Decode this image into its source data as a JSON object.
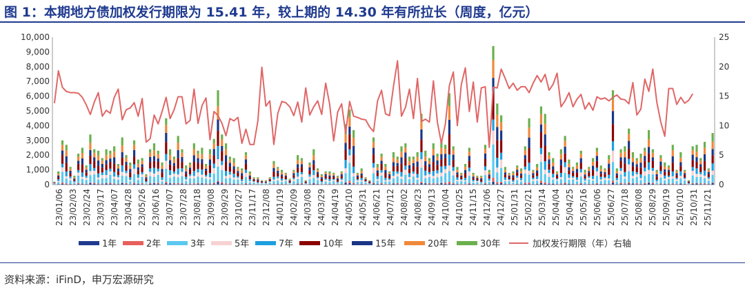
{
  "title": "图 1：本期地方债加权发行期限为 15.41 年，较上期的 14.30 年有所拉长（周度，亿元）",
  "source": "资料来源：iFinD，申万宏源研究",
  "colors": {
    "y1": "#1f3a8f",
    "y2": "#e8605c",
    "y3": "#5bc8ef",
    "y5": "#f7d2d2",
    "y7": "#1e9fe0",
    "y10": "#8b0000",
    "y15": "#1a3585",
    "y20": "#f0883a",
    "y30": "#6ab04c",
    "line": "#e06666",
    "title": "#1f3a8f"
  },
  "chart_data": {
    "type": "bar",
    "stacked": true,
    "title": "",
    "xlabel": "",
    "ylabel": "",
    "y_left": {
      "min": 0,
      "max": 10000,
      "step": 1000
    },
    "y_right": {
      "min": 0,
      "max": 25,
      "step": 5
    },
    "legend_position": "bottom",
    "grid": false,
    "x_labels": [
      "23/01/06",
      "23/02/03",
      "23/02/24",
      "23/03/17",
      "23/04/07",
      "23/04/28",
      "23/05/26",
      "23/06/16",
      "23/07/07",
      "23/07/28",
      "23/08/18",
      "23/09/08",
      "23/09/29",
      "23/10/27",
      "23/11/17",
      "23/12/08",
      "24/01/19",
      "24/02/09",
      "24/03/08",
      "24/03/29",
      "24/04/19",
      "24/05/10",
      "24/05/31",
      "24/06/21",
      "24/07/12",
      "24/08/02",
      "24/08/23",
      "24/09/13",
      "24/10/04",
      "24/10/25",
      "24/11/15",
      "24/12/06",
      "24/12/27",
      "25/01/31",
      "25/02/21",
      "25/03/14",
      "25/04/04",
      "25/04/25",
      "25/05/16",
      "25/06/06",
      "25/06/27",
      "25/07/18",
      "25/08/08",
      "25/08/29",
      "25/09/19",
      "25/10/10",
      "25/10/31",
      "25/11/21"
    ],
    "series": [
      {
        "name": "1年",
        "key": "y1",
        "axis": "left"
      },
      {
        "name": "2年",
        "key": "y2",
        "axis": "left"
      },
      {
        "name": "3年",
        "key": "y3",
        "axis": "left"
      },
      {
        "name": "5年",
        "key": "y5",
        "axis": "left"
      },
      {
        "name": "7年",
        "key": "y7",
        "axis": "left"
      },
      {
        "name": "10年",
        "key": "y10",
        "axis": "left"
      },
      {
        "name": "15年",
        "key": "y15",
        "axis": "left"
      },
      {
        "name": "20年",
        "key": "y20",
        "axis": "left"
      },
      {
        "name": "30年",
        "key": "y30",
        "axis": "left"
      },
      {
        "name": "加权发行期限（年）右轴",
        "key": "line",
        "axis": "right",
        "type": "line"
      }
    ],
    "totals": [
      200,
      900,
      3000,
      2700,
      1200,
      600,
      2100,
      2500,
      1300,
      3400,
      2400,
      2300,
      1800,
      2400,
      2300,
      2600,
      1400,
      3200,
      2000,
      1500,
      3000,
      1700,
      1800,
      700,
      2400,
      2800,
      2300,
      1500,
      4500,
      2400,
      1900,
      3300,
      2400,
      1300,
      1500,
      2800,
      2300,
      2500,
      1400,
      2400,
      3100,
      6400,
      3400,
      2800,
      1900,
      1800,
      1200,
      1100,
      2200,
      900,
      500,
      500,
      300,
      300,
      500,
      1600,
      1200,
      1000,
      800,
      400,
      1000,
      2000,
      1800,
      300,
      1500,
      2400,
      1100,
      700,
      900,
      900,
      800,
      600,
      900,
      4100,
      5100,
      3700,
      800,
      1100,
      500,
      300,
      3200,
      1400,
      2100,
      1400,
      900,
      2200,
      1900,
      2600,
      2800,
      1900,
      1900,
      2200,
      4800,
      2300,
      1800,
      2800,
      2100,
      3000,
      2700,
      6200,
      2600,
      1200,
      800,
      1400,
      2500,
      800,
      600,
      600,
      2700,
      1000,
      9400,
      5500,
      4700,
      1200,
      800,
      900,
      1300,
      1100,
      2600,
      4500,
      1000,
      1400,
      5300,
      4800,
      2200,
      1800,
      900,
      2400,
      3300,
      1700,
      1200,
      1500,
      2300,
      1000,
      1200,
      1800,
      2500,
      1300,
      1100,
      2000,
      6400,
      1100,
      2400,
      2600,
      3800,
      2200,
      1800,
      2100,
      2500,
      3700,
      2400,
      1000,
      2000,
      1500,
      1300,
      2700,
      1000,
      2200,
      1000,
      300,
      2600,
      2700,
      1800,
      2900,
      1100,
      3500
    ],
    "weighted_maturity": [
      13.8,
      19.3,
      16.5,
      15.8,
      15.6,
      15.6,
      15.5,
      14.8,
      13.5,
      11.9,
      14.0,
      15.6,
      11.6,
      12.6,
      12.1,
      14.8,
      16.2,
      11.0,
      12.7,
      13.0,
      13.9,
      11.6,
      14.6,
      7.2,
      7.8,
      11.8,
      10.3,
      12.4,
      14.8,
      11.2,
      12.7,
      14.9,
      14.9,
      10.3,
      10.9,
      16.2,
      10.4,
      13.4,
      14.7,
      7.6,
      12.4,
      11.7,
      10.4,
      8.3,
      11.2,
      10.8,
      11.4,
      7.0,
      9.4,
      6.8,
      6.8,
      10.8,
      19.9,
      13.3,
      14.2,
      6.8,
      12.1,
      14.1,
      13.9,
      13.2,
      11.7,
      14.0,
      10.6,
      16.4,
      11.8,
      13.2,
      14.2,
      11.9,
      17.2,
      13.6,
      7.4,
      12.3,
      13.7,
      8.7,
      14.1,
      11.6,
      11.4,
      11.1,
      11.0,
      9.8,
      9.0,
      14.2,
      16.0,
      12.0,
      11.7,
      16.7,
      21.0,
      11.6,
      13.1,
      16.2,
      11.2,
      18.0,
      10.7,
      11.1,
      10.6,
      17.6,
      10.6,
      7.0,
      10.3,
      16.8,
      19.1,
      10.0,
      17.0,
      19.8,
      12.4,
      17.4,
      10.6,
      16.4,
      16.6,
      6.3,
      16.5,
      16.4,
      19.6,
      18.0,
      16.3,
      17.2,
      16.0,
      16.6,
      16.6,
      15.6,
      17.2,
      18.5,
      17.4,
      18.7,
      16.0,
      17.0,
      18.9,
      13.2,
      14.2,
      15.6,
      13.2,
      14.5,
      15.3,
      12.8,
      13.9,
      12.6,
      14.9,
      14.5,
      14.7,
      14.2,
      14.8,
      15.2,
      14.5,
      14.4,
      13.7,
      17.3,
      11.8,
      12.8,
      17.9,
      15.8,
      19.6,
      14.0,
      10.6,
      8.2,
      16.3,
      16.3,
      13.6,
      14.8,
      13.8,
      14.3,
      15.4
    ]
  }
}
